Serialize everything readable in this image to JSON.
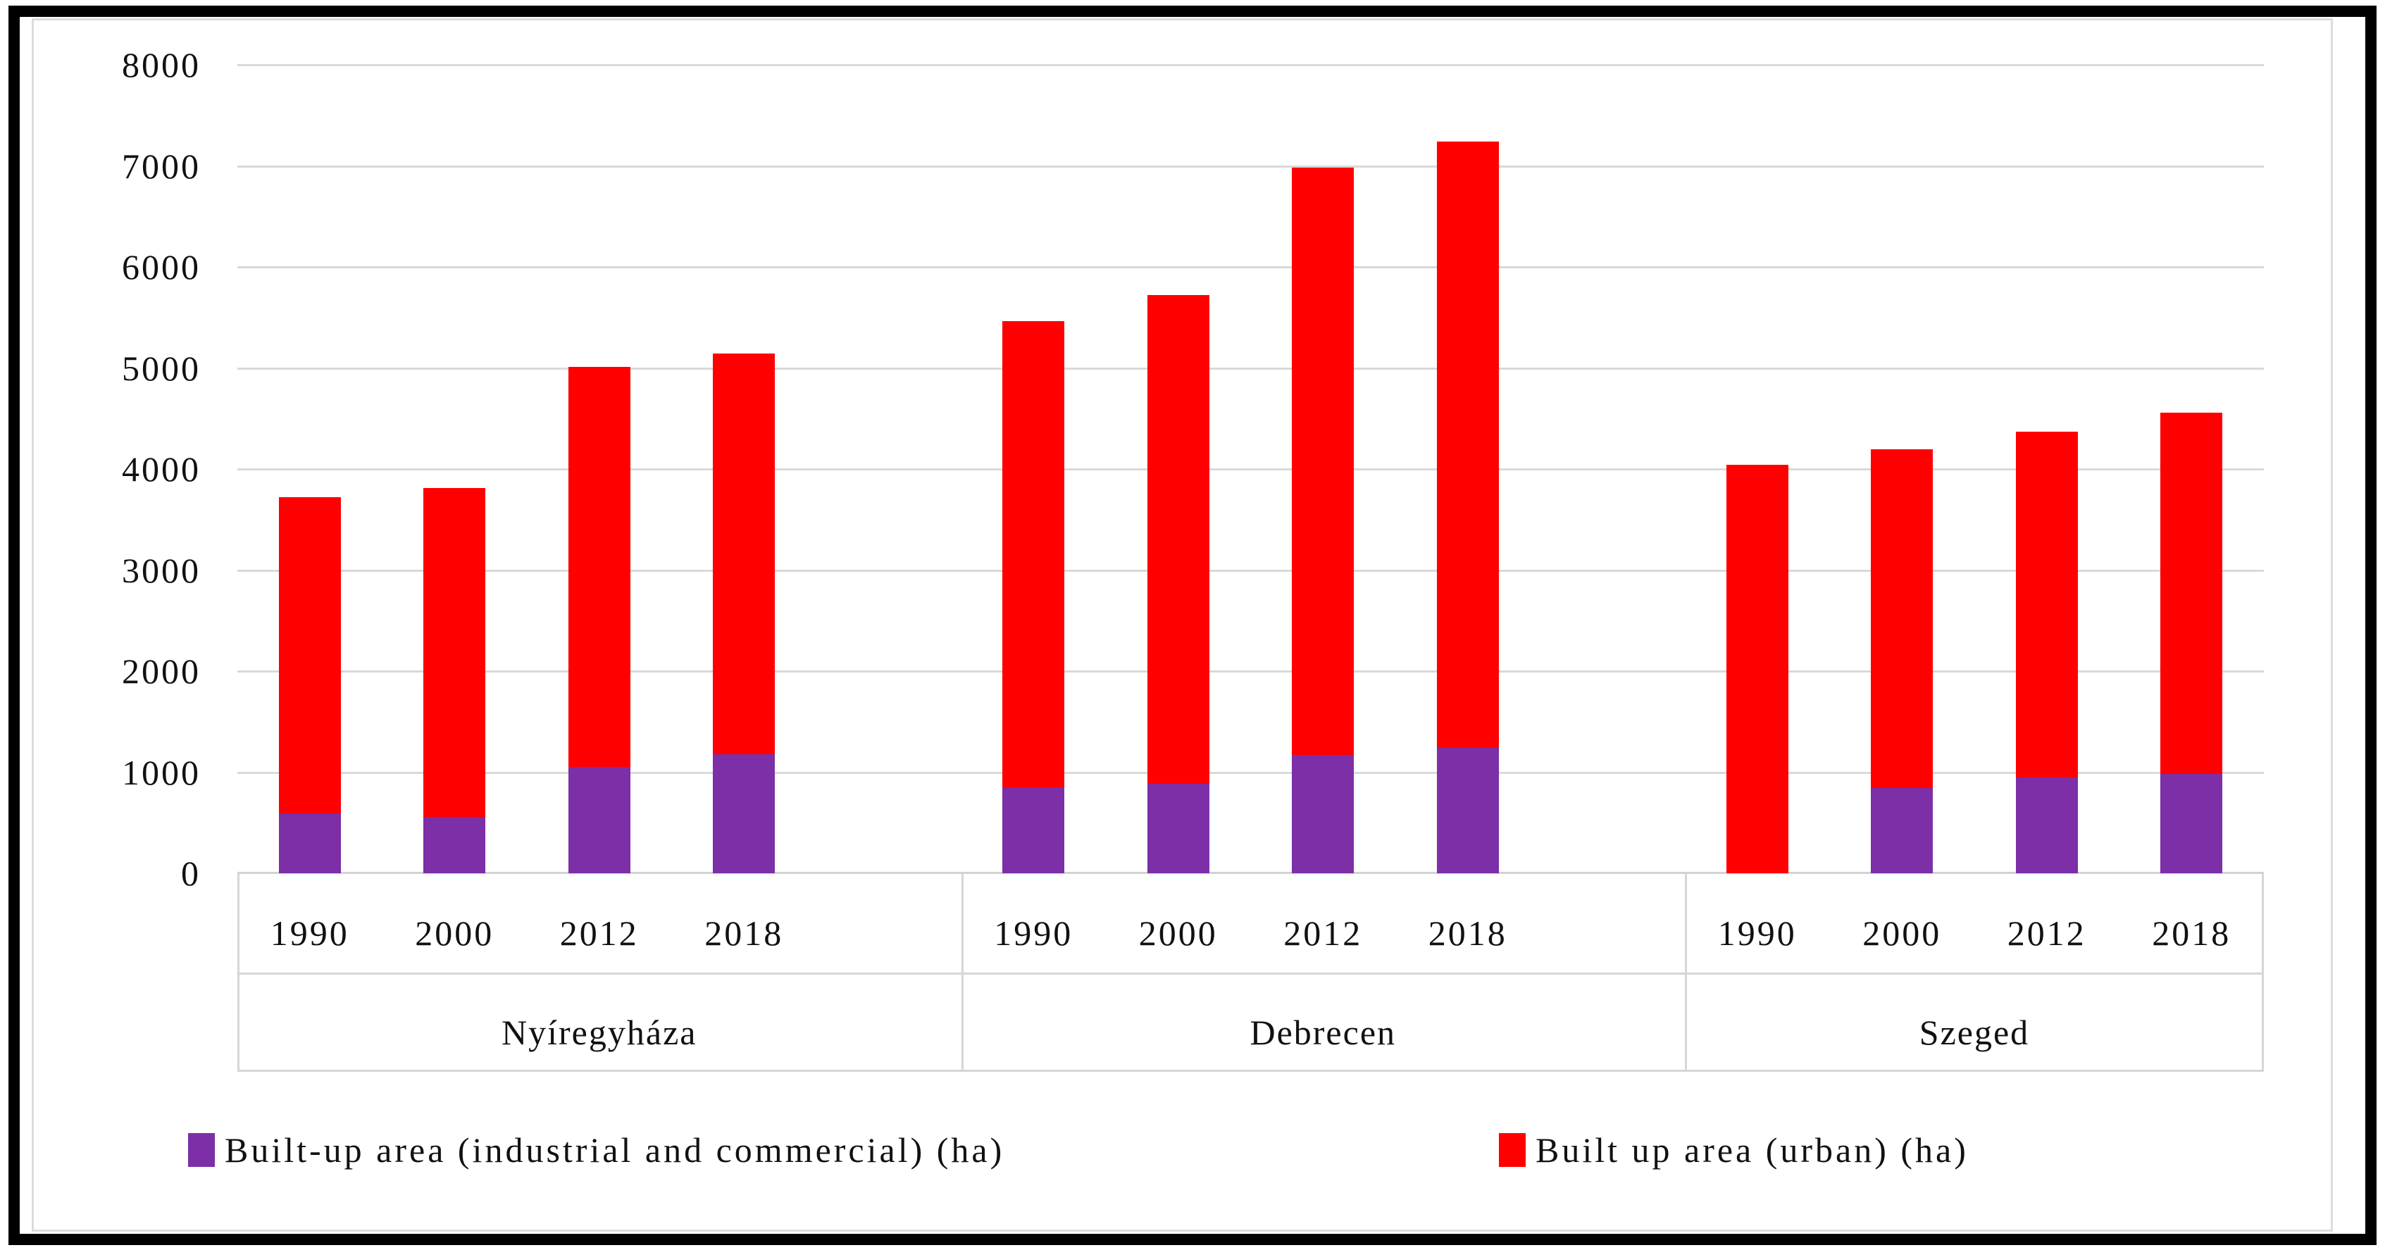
{
  "chart_data": {
    "type": "bar",
    "stacked": true,
    "title": "",
    "xlabel": "",
    "ylabel": "",
    "grid": true,
    "legend_position": "bottom",
    "y_axis": {
      "min": 0,
      "max": 8000,
      "tick_step": 1000,
      "tick_labels": [
        "8000",
        "7000",
        "6000",
        "5000",
        "4000",
        "3000",
        "2000",
        "1000",
        "0"
      ]
    },
    "series": [
      {
        "name": "Built-up area (industrial and commercial) (ha)",
        "color": "#7c2fa6",
        "key": "industrial"
      },
      {
        "name": "Built up area (urban) (ha)",
        "color": "#ff0000",
        "key": "urban"
      }
    ],
    "categories_years": [
      "1990",
      "2000",
      "2012",
      "2018"
    ],
    "groups": [
      {
        "city": "Nyíregyháza",
        "bars": [
          {
            "year": "1990",
            "industrial": 590,
            "urban": 3130,
            "total": 3720
          },
          {
            "year": "2000",
            "industrial": 560,
            "urban": 3255,
            "total": 3815
          },
          {
            "year": "2012",
            "industrial": 1050,
            "urban": 3960,
            "total": 5010
          },
          {
            "year": "2018",
            "industrial": 1180,
            "urban": 3965,
            "total": 5145
          }
        ]
      },
      {
        "city": "Debrecen",
        "bars": [
          {
            "year": "1990",
            "industrial": 850,
            "urban": 4610,
            "total": 5460
          },
          {
            "year": "2000",
            "industrial": 885,
            "urban": 4835,
            "total": 5720
          },
          {
            "year": "2012",
            "industrial": 1170,
            "urban": 5810,
            "total": 6980
          },
          {
            "year": "2018",
            "industrial": 1240,
            "urban": 6000,
            "total": 7240
          }
        ]
      },
      {
        "city": "Szeged",
        "bars": [
          {
            "year": "1990",
            "industrial": 0,
            "urban": 4040,
            "total": 4040
          },
          {
            "year": "2000",
            "industrial": 845,
            "urban": 3355,
            "total": 4200
          },
          {
            "year": "2012",
            "industrial": 950,
            "urban": 3420,
            "total": 4370
          },
          {
            "year": "2018",
            "industrial": 980,
            "urban": 3580,
            "total": 4560
          }
        ]
      }
    ],
    "colors": {
      "gridline": "#d9d9d9",
      "axis_line": "#d2d2d2",
      "divider_line": "#d6d6d6",
      "outer_border": "#000000",
      "inner_border": "#dcdcdc",
      "text": "#111111",
      "background": "#ffffff"
    }
  }
}
